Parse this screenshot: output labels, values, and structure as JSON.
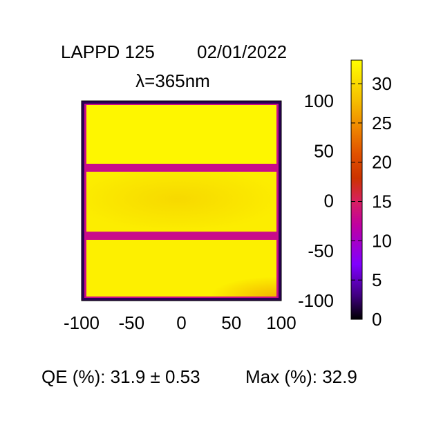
{
  "header": {
    "title_left": "LAPPD 125",
    "title_date": "02/01/2022",
    "subtitle": "λ=365nm"
  },
  "footer": {
    "qe_text": "QE (%): 31.9 ±  0.53",
    "max_text": "Max (%): 32.9"
  },
  "chart_data": {
    "type": "heatmap",
    "title": "LAPPD 125 02/01/2022",
    "subtitle": "λ=365nm",
    "xlim": [
      -100,
      100
    ],
    "ylim": [
      -100,
      100
    ],
    "x_ticks": [
      -100,
      -50,
      0,
      50,
      100
    ],
    "x_tick_labels": [
      "-100",
      "-50",
      "0",
      "50",
      "100"
    ],
    "y_ticks": [
      100,
      50,
      0,
      -50,
      -100
    ],
    "y_tick_labels": [
      "100",
      "50",
      "0",
      "-50",
      "-100"
    ],
    "colorbar": {
      "range": [
        0,
        33
      ],
      "ticks": [
        0,
        5,
        10,
        15,
        20,
        25,
        30
      ],
      "tick_labels": [
        "0",
        "5",
        "10",
        "15",
        "20",
        "25",
        "30"
      ],
      "colormap": "gnuplot-pm3d (black-purple-red-orange-yellow)",
      "stops": [
        {
          "value": 0,
          "color": "#000000"
        },
        {
          "value": 3,
          "color": "#400080"
        },
        {
          "value": 7,
          "color": "#8000ff"
        },
        {
          "value": 12,
          "color": "#c000a0"
        },
        {
          "value": 15,
          "color": "#d82060"
        },
        {
          "value": 18,
          "color": "#cc3300"
        },
        {
          "value": 21,
          "color": "#e05000"
        },
        {
          "value": 24,
          "color": "#ee8000"
        },
        {
          "value": 28,
          "color": "#f6c000"
        },
        {
          "value": 33,
          "color": "#ffff00"
        }
      ]
    },
    "grid": false,
    "panels": [
      {
        "x": [
          -100,
          100
        ],
        "y": [
          35,
          100
        ],
        "qe": 32.3
      },
      {
        "x": [
          -100,
          100
        ],
        "y": [
          -33,
          31
        ],
        "qe": 31.6
      },
      {
        "x": [
          -100,
          100
        ],
        "y": [
          -100,
          -37
        ],
        "qe": 31.8
      }
    ],
    "background_qe": 2,
    "gap_qe": 13,
    "qe_mean": 31.9,
    "qe_err": 0.53,
    "qe_max": 32.9
  }
}
